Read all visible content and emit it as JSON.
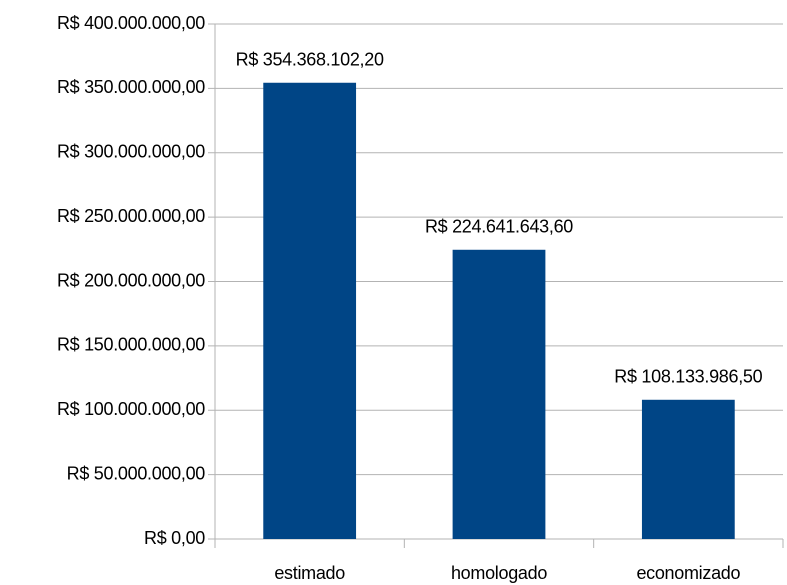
{
  "chart_data": {
    "type": "bar",
    "categories": [
      "estimado",
      "homologado",
      "economizado"
    ],
    "values": [
      354368102.2,
      224641643.6,
      108133986.5
    ],
    "value_labels": [
      "R$ 354.368.102,20",
      "R$ 224.641.643,60",
      "R$ 108.133.986,50"
    ],
    "color": "#004586",
    "ylim": [
      0,
      400000000
    ],
    "yticks": [
      {
        "value": 0,
        "label": "R$ 0,00"
      },
      {
        "value": 50000000,
        "label": "R$ 50.000.000,00"
      },
      {
        "value": 100000000,
        "label": "R$ 100.000.000,00"
      },
      {
        "value": 150000000,
        "label": "R$ 150.000.000,00"
      },
      {
        "value": 200000000,
        "label": "R$ 200.000.000,00"
      },
      {
        "value": 250000000,
        "label": "R$ 250.000.000,00"
      },
      {
        "value": 300000000,
        "label": "R$ 300.000.000,00"
      },
      {
        "value": 350000000,
        "label": "R$ 350.000.000,00"
      },
      {
        "value": 400000000,
        "label": "R$ 400.000.000,00"
      }
    ],
    "grid": true
  }
}
